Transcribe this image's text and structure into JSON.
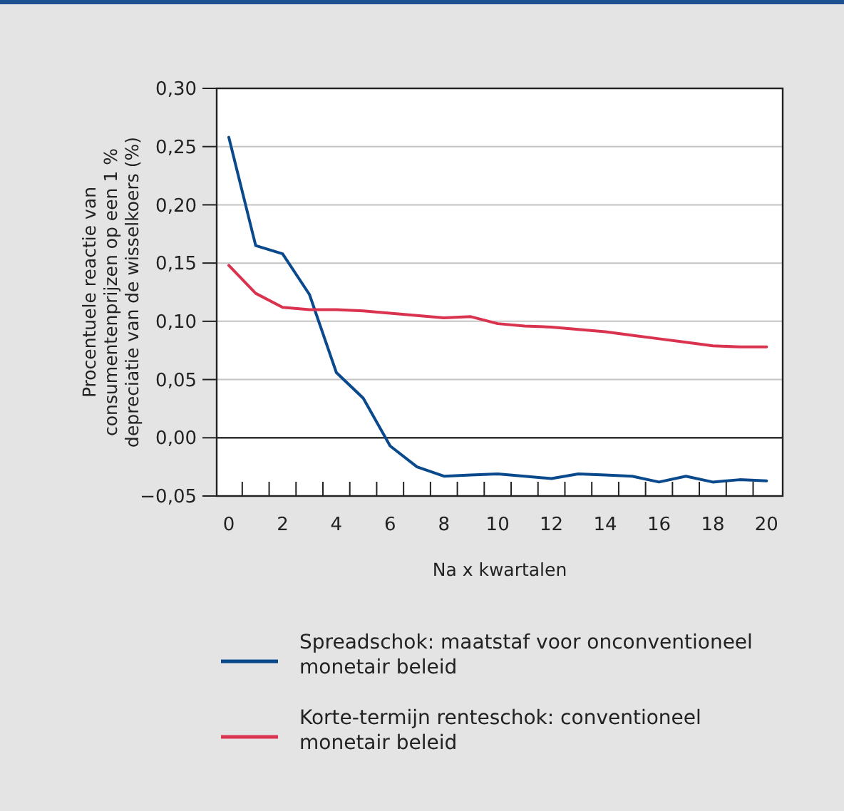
{
  "chart_data": {
    "type": "line",
    "xlabel": "Na x kwartalen",
    "ylabel": "Procentuele reactie van consumentenprijzen op een 1 % depreciatie van de wisselkoers (%)",
    "x": [
      0,
      1,
      2,
      3,
      4,
      5,
      6,
      7,
      8,
      9,
      10,
      11,
      12,
      13,
      14,
      15,
      16,
      17,
      18,
      19,
      20
    ],
    "series": [
      {
        "name": "Spreadschok: maatstaf voor onconventioneel monetair beleid",
        "color": "#0a4a8c",
        "values": [
          0.258,
          0.165,
          0.158,
          0.123,
          0.056,
          0.034,
          -0.007,
          -0.025,
          -0.033,
          -0.032,
          -0.031,
          -0.033,
          -0.035,
          -0.031,
          -0.032,
          -0.033,
          -0.038,
          -0.033,
          -0.038,
          -0.036,
          -0.037
        ]
      },
      {
        "name": "Korte-termijn renteschok: conventioneel monetair beleid",
        "color": "#d9334f",
        "values": [
          0.148,
          0.124,
          0.112,
          0.11,
          0.11,
          0.109,
          0.107,
          0.105,
          0.103,
          0.104,
          0.098,
          0.096,
          0.095,
          0.093,
          0.091,
          0.088,
          0.085,
          0.082,
          0.079,
          0.078,
          0.078
        ]
      }
    ],
    "xlim": [
      -0.45,
      20.6
    ],
    "xticks": [
      0,
      2,
      4,
      6,
      8,
      10,
      12,
      14,
      16,
      18,
      20,
      {
        "value": 0.5,
        "label": null
      },
      {
        "value": 1.5,
        "label": null
      },
      {
        "value": 2.5,
        "label": null
      },
      {
        "value": 3.5,
        "label": null
      },
      {
        "value": 4.5,
        "label": null
      },
      {
        "value": 5.5,
        "label": null
      },
      {
        "value": 6.5,
        "label": null
      },
      {
        "value": 7.5,
        "label": null
      },
      {
        "value": 8.5,
        "label": null
      },
      {
        "value": 9.5,
        "label": null
      },
      {
        "value": 10.5,
        "label": null
      },
      {
        "value": 11.5,
        "label": null
      },
      {
        "value": 12.5,
        "label": null
      },
      {
        "value": 13.5,
        "label": null
      },
      {
        "value": 14.5,
        "label": null
      },
      {
        "value": 15.5,
        "label": null
      },
      {
        "value": 16.5,
        "label": null
      },
      {
        "value": 17.5,
        "label": null
      },
      {
        "value": 18.5,
        "label": null
      },
      {
        "value": 19.5,
        "label": null
      }
    ],
    "ylim": [
      -0.05,
      0.3
    ],
    "yticks": [
      {
        "value": -0.05,
        "label": "−0,05"
      },
      {
        "value": 0,
        "label": "0,00"
      },
      {
        "value": 0.05,
        "label": "0,05"
      },
      {
        "value": 0.1,
        "label": "0,10"
      },
      {
        "value": 0.15,
        "label": "0,15"
      },
      {
        "value": 0.2,
        "label": "0,20"
      },
      {
        "value": 0.25,
        "label": "0,25"
      },
      {
        "value": 0.3,
        "label": "0,30"
      }
    ],
    "ref_lines": [
      {
        "axis": "y",
        "value": 0,
        "color": "#333333"
      }
    ],
    "grid": "y",
    "legend": "bottom",
    "marker": "none",
    "line_style": "solid"
  }
}
